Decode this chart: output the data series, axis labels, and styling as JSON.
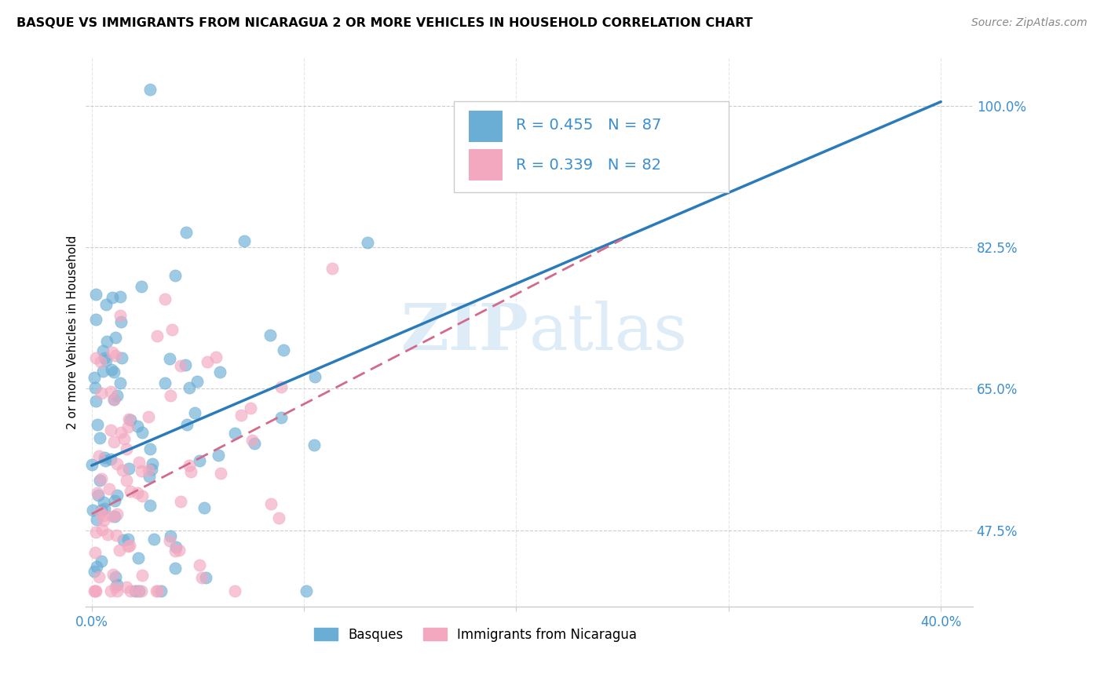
{
  "title": "BASQUE VS IMMIGRANTS FROM NICARAGUA 2 OR MORE VEHICLES IN HOUSEHOLD CORRELATION CHART",
  "source": "Source: ZipAtlas.com",
  "ylabel": "2 or more Vehicles in Household",
  "xmin": -0.003,
  "xmax": 0.415,
  "ymin": 0.38,
  "ymax": 1.06,
  "blue_line_x0": 0.0,
  "blue_line_y0": 0.555,
  "blue_line_x1": 0.4,
  "blue_line_y1": 1.005,
  "pink_line_x0": 0.0,
  "pink_line_y0": 0.495,
  "pink_line_x1": 0.25,
  "pink_line_y1": 0.835,
  "blue_color": "#6aaed6",
  "pink_color": "#f4a8c0",
  "blue_line_color": "#2b7bba",
  "pink_line_color": "#d46a8a",
  "text_color": "#3b8ecf",
  "grid_color": "#cccccc",
  "yticks": [
    0.475,
    0.65,
    0.825,
    1.0
  ],
  "ytick_labels": [
    "47.5%",
    "65.0%",
    "82.5%",
    "100.0%"
  ],
  "xticks": [
    0.0,
    0.1,
    0.2,
    0.3,
    0.4
  ],
  "xtick_labels": [
    "0.0%",
    "",
    "",
    "",
    "40.0%"
  ],
  "legend_r1": "R = 0.455",
  "legend_n1": "N = 87",
  "legend_r2": "R = 0.339",
  "legend_n2": "N = 82"
}
